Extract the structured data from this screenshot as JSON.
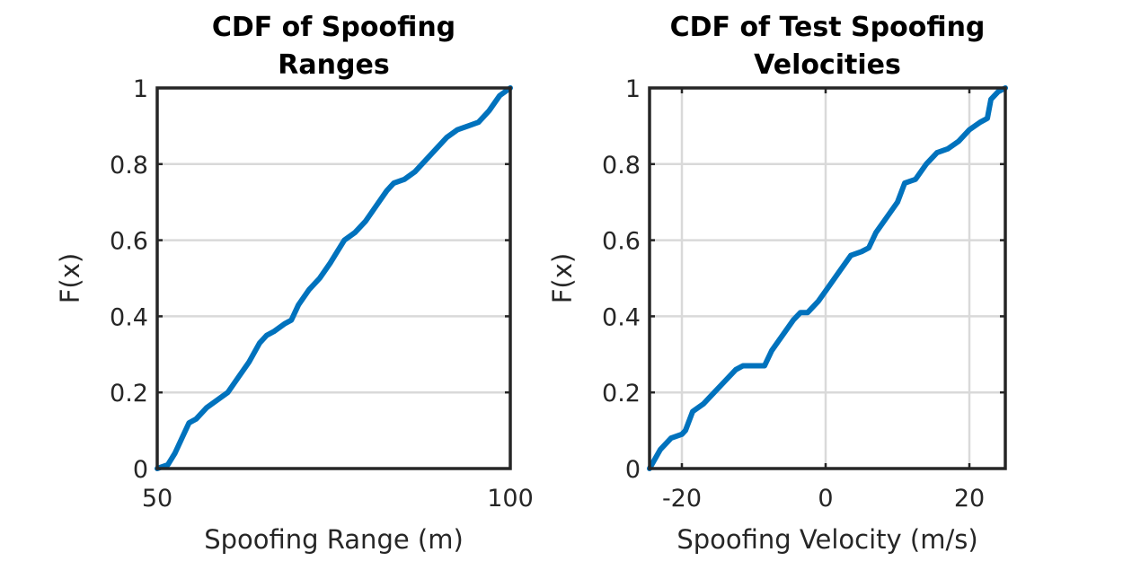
{
  "chart_data": [
    {
      "type": "line",
      "title": [
        "CDF of Spoofing",
        "Ranges"
      ],
      "xlabel": "Spoofing Range (m)",
      "ylabel": "F(x)",
      "xlim": [
        50,
        100
      ],
      "ylim": [
        0,
        1
      ],
      "xticks": [
        50,
        100
      ],
      "yticks": [
        0,
        0.2,
        0.4,
        0.6,
        0.8,
        1
      ],
      "xtick_labels": [
        "50",
        "100"
      ],
      "ytick_labels": [
        "0",
        "0.2",
        "0.4",
        "0.6",
        "0.8",
        "1"
      ],
      "xgrid": false,
      "ygrid": true,
      "color": "#0072BD",
      "series": [
        {
          "name": "CDF",
          "x": [
            50.0,
            51.5,
            52.5,
            53.5,
            54.5,
            55.5,
            57.0,
            58.5,
            60.0,
            61.5,
            63.0,
            64.5,
            65.5,
            66.5,
            68.0,
            69.0,
            70.0,
            71.5,
            73.0,
            74.5,
            75.5,
            76.5,
            78.0,
            79.5,
            81.0,
            82.5,
            83.5,
            85.0,
            86.5,
            88.0,
            89.5,
            91.0,
            92.5,
            94.0,
            95.5,
            97.0,
            98.5,
            100.0
          ],
          "y": [
            0.0,
            0.01,
            0.04,
            0.08,
            0.12,
            0.13,
            0.16,
            0.18,
            0.2,
            0.24,
            0.28,
            0.33,
            0.35,
            0.36,
            0.38,
            0.39,
            0.43,
            0.47,
            0.5,
            0.54,
            0.57,
            0.6,
            0.62,
            0.65,
            0.69,
            0.73,
            0.75,
            0.76,
            0.78,
            0.81,
            0.84,
            0.87,
            0.89,
            0.9,
            0.91,
            0.94,
            0.98,
            1.0
          ]
        }
      ]
    },
    {
      "type": "line",
      "title": [
        "CDF of Test Spoofing",
        "Velocities"
      ],
      "xlabel": "Spoofing Velocity (m/s)",
      "ylabel": "F(x)",
      "xlim": [
        -24.5,
        25
      ],
      "ylim": [
        0,
        1
      ],
      "xticks": [
        -20,
        0,
        20
      ],
      "yticks": [
        0,
        0.2,
        0.4,
        0.6,
        0.8,
        1
      ],
      "xtick_labels": [
        "-20",
        "0",
        "20"
      ],
      "ytick_labels": [
        "0",
        "0.2",
        "0.4",
        "0.6",
        "0.8",
        "1"
      ],
      "xgrid": true,
      "ygrid": true,
      "color": "#0072BD",
      "series": [
        {
          "name": "CDF",
          "x": [
            -24.5,
            -23.0,
            -21.5,
            -20.0,
            -19.5,
            -18.5,
            -17.0,
            -15.5,
            -14.0,
            -12.5,
            -11.5,
            -10.0,
            -8.5,
            -7.5,
            -6.0,
            -4.5,
            -3.5,
            -2.5,
            -1.0,
            0.5,
            2.0,
            3.5,
            5.0,
            6.0,
            7.0,
            8.5,
            10.0,
            11.0,
            12.5,
            14.0,
            15.5,
            17.0,
            18.5,
            20.0,
            21.5,
            22.5,
            23.0,
            24.0,
            25.0
          ],
          "y": [
            0.0,
            0.05,
            0.08,
            0.09,
            0.1,
            0.15,
            0.17,
            0.2,
            0.23,
            0.26,
            0.27,
            0.27,
            0.27,
            0.31,
            0.35,
            0.39,
            0.41,
            0.41,
            0.44,
            0.48,
            0.52,
            0.56,
            0.57,
            0.58,
            0.62,
            0.66,
            0.7,
            0.75,
            0.76,
            0.8,
            0.83,
            0.84,
            0.86,
            0.89,
            0.91,
            0.92,
            0.97,
            0.99,
            1.0
          ]
        }
      ]
    }
  ]
}
